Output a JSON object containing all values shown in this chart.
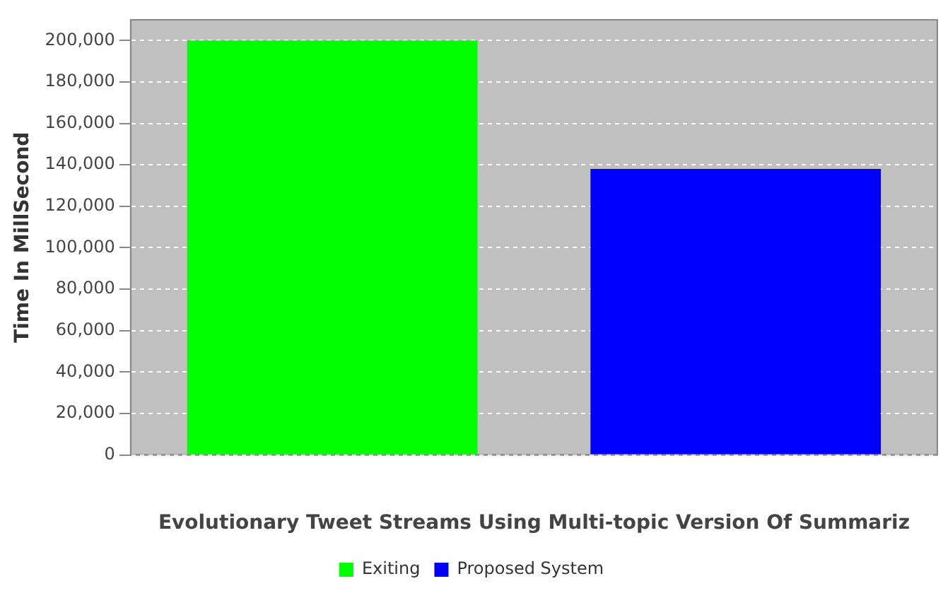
{
  "chart_data": {
    "type": "bar",
    "xlabel": "Evolutionary Tweet Streams Using Multi-topic Version Of Summariz",
    "ylabel": "Time In MillSecond",
    "categories": [
      null
    ],
    "series": [
      {
        "name": "Exiting",
        "color": "#00ff00",
        "values": [
          200000
        ]
      },
      {
        "name": "Proposed System",
        "color": "#0000ff",
        "values": [
          138000
        ]
      }
    ],
    "ylim": [
      0,
      210000
    ],
    "yticks": [
      {
        "value": 0,
        "label": "0"
      },
      {
        "value": 20000,
        "label": "20,000"
      },
      {
        "value": 40000,
        "label": "40,000"
      },
      {
        "value": 60000,
        "label": "60,000"
      },
      {
        "value": 80000,
        "label": "80,000"
      },
      {
        "value": 100000,
        "label": "100,000"
      },
      {
        "value": 120000,
        "label": "120,000"
      },
      {
        "value": 140000,
        "label": "140,000"
      },
      {
        "value": 160000,
        "label": "160,000"
      },
      {
        "value": 180000,
        "label": "180,000"
      },
      {
        "value": 200000,
        "label": "200,000"
      }
    ],
    "grid": "y",
    "legend": "bottom"
  }
}
